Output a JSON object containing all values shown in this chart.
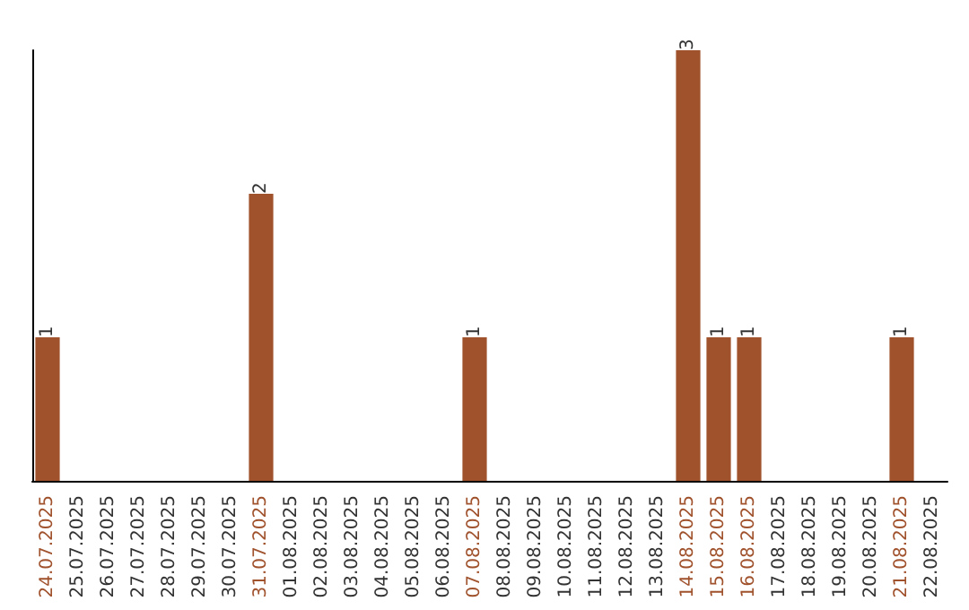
{
  "chart_data": {
    "type": "bar",
    "categories": [
      "24.07.2025",
      "25.07.2025",
      "26.07.2025",
      "27.07.2025",
      "28.07.2025",
      "29.07.2025",
      "30.07.2025",
      "31.07.2025",
      "01.08.2025",
      "02.08.2025",
      "03.08.2025",
      "04.08.2025",
      "05.08.2025",
      "06.08.2025",
      "07.08.2025",
      "08.08.2025",
      "09.08.2025",
      "10.08.2025",
      "11.08.2025",
      "12.08.2025",
      "13.08.2025",
      "14.08.2025",
      "15.08.2025",
      "16.08.2025",
      "17.08.2025",
      "18.08.2025",
      "19.08.2025",
      "20.08.2025",
      "21.08.2025",
      "22.08.2025"
    ],
    "values": [
      1,
      0,
      0,
      0,
      0,
      0,
      0,
      2,
      0,
      0,
      0,
      0,
      0,
      0,
      1,
      0,
      0,
      0,
      0,
      0,
      0,
      3,
      1,
      1,
      0,
      0,
      0,
      0,
      1,
      0
    ],
    "value_labels": [
      "1",
      null,
      null,
      null,
      null,
      null,
      null,
      "2",
      null,
      null,
      null,
      null,
      null,
      null,
      "1",
      null,
      null,
      null,
      null,
      null,
      null,
      "3",
      "1",
      "1",
      null,
      null,
      null,
      null,
      "1",
      null
    ],
    "color": "#a0522d"
  }
}
